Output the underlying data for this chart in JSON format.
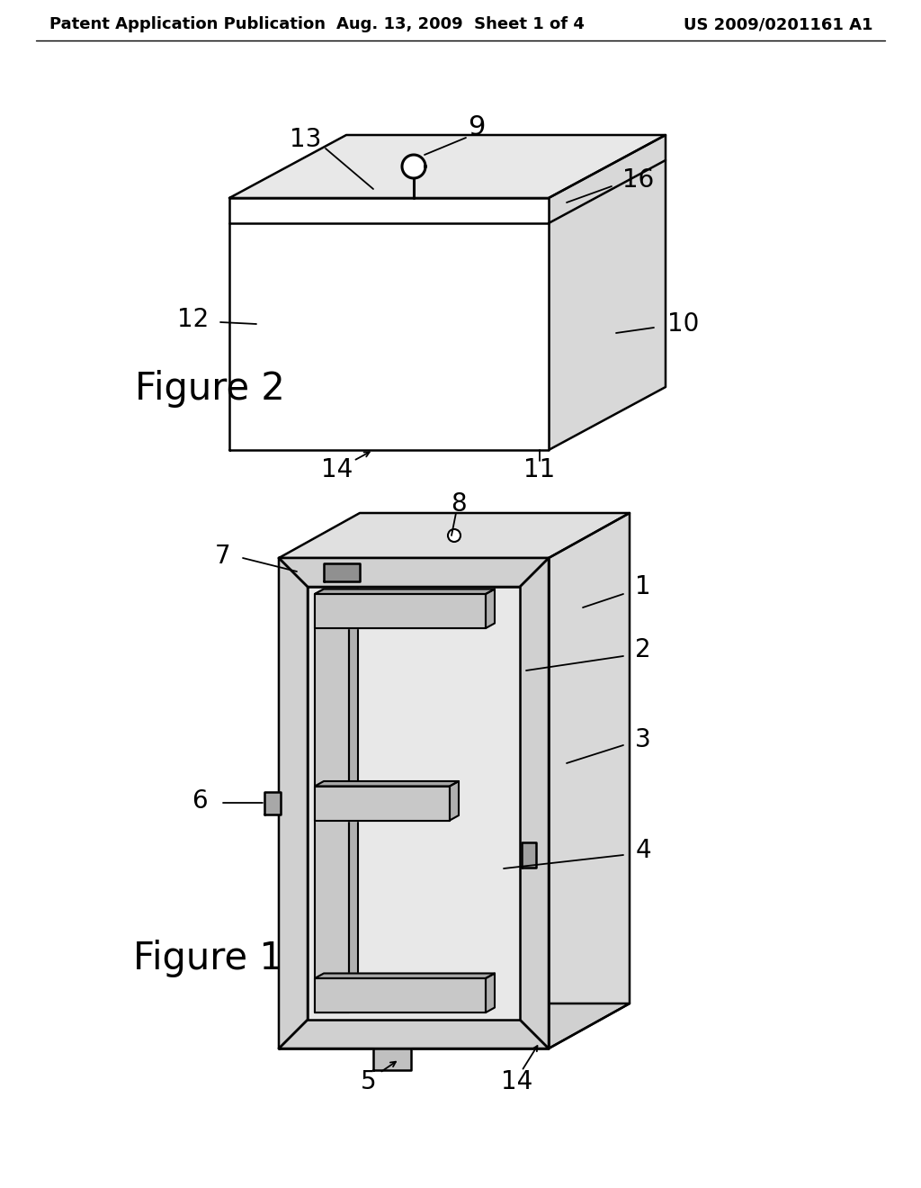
{
  "bg_color": "#ffffff",
  "line_color": "#000000",
  "header_left": "Patent Application Publication",
  "header_center": "Aug. 13, 2009  Sheet 1 of 4",
  "header_right": "US 2009/0201161 A1",
  "fig1_label": "Figure 1",
  "fig2_label": "Figure 2",
  "label_fontsize": 20,
  "fig_label_fontsize": 30,
  "header_fontsize": 13,
  "lw": 1.8
}
